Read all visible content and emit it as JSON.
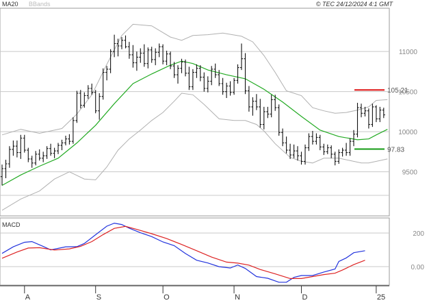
{
  "header": {
    "ma_label": "MA20",
    "bands_label": "BBands",
    "copyright": "© TEC 24/12/2024 4:1 GMT"
  },
  "colors": {
    "ma": "#22aa22",
    "bands": "#b0b0b0",
    "bars": "#111111",
    "resistance": "#dd1111",
    "support": "#119911",
    "macd": "#2233dd",
    "signal": "#dd2222",
    "grid": "#c8c8c8",
    "frame": "#999999"
  },
  "chart_data": [
    {
      "type": "ohlc",
      "y_axis": {
        "min": 89.5,
        "max": 115.4,
        "ticks": [
          95,
          100,
          105,
          110
        ],
        "tick_labels": [
          "9500",
          "10000",
          "10500",
          "11000"
        ]
      },
      "x_axis": {
        "min": 0,
        "max": 103.5,
        "ticks": [
          6,
          25,
          43,
          62,
          80,
          100
        ],
        "tick_labels": [
          "A",
          "S",
          "O",
          "N",
          "D",
          "25"
        ]
      },
      "levels": [
        {
          "name": "resistance",
          "value": 105.21,
          "label": "105.21"
        },
        {
          "name": "support",
          "value": 97.83,
          "label": "97.83"
        }
      ],
      "ohlc": [
        [
          94.4,
          95.9,
          93.3,
          95.4
        ],
        [
          95.4,
          96.5,
          94.2,
          96.0
        ],
        [
          96.0,
          98.2,
          95.5,
          97.8
        ],
        [
          97.8,
          98.9,
          97.0,
          98.2
        ],
        [
          98.2,
          98.9,
          96.8,
          97.4
        ],
        [
          97.4,
          99.6,
          96.6,
          99.2
        ],
        [
          99.2,
          99.6,
          97.4,
          97.7
        ],
        [
          97.7,
          98.0,
          96.2,
          96.6
        ],
        [
          96.6,
          97.0,
          95.5,
          96.1
        ],
        [
          96.1,
          97.6,
          95.8,
          97.2
        ],
        [
          97.2,
          97.8,
          96.4,
          96.7
        ],
        [
          96.7,
          97.5,
          96.2,
          97.0
        ],
        [
          97.0,
          98.2,
          96.6,
          97.9
        ],
        [
          97.9,
          98.5,
          97.0,
          97.3
        ],
        [
          97.3,
          98.0,
          96.7,
          97.6
        ],
        [
          97.6,
          98.6,
          97.2,
          98.3
        ],
        [
          98.3,
          99.0,
          97.7,
          98.6
        ],
        [
          98.6,
          99.5,
          98.3,
          99.1
        ],
        [
          99.1,
          99.7,
          98.4,
          98.8
        ],
        [
          98.8,
          101.8,
          98.5,
          101.4
        ],
        [
          101.4,
          105.1,
          101.1,
          104.8
        ],
        [
          104.8,
          105.2,
          102.9,
          103.3
        ],
        [
          103.3,
          104.9,
          103.0,
          104.5
        ],
        [
          104.5,
          105.8,
          104.1,
          105.4
        ],
        [
          105.4,
          106.0,
          104.6,
          104.9
        ],
        [
          104.9,
          105.2,
          102.3,
          102.6
        ],
        [
          102.6,
          104.8,
          101.5,
          104.4
        ],
        [
          104.4,
          107.9,
          104.0,
          107.4
        ],
        [
          107.4,
          108.2,
          106.4,
          107.8
        ],
        [
          107.8,
          110.3,
          107.3,
          110.0
        ],
        [
          110.0,
          112.1,
          109.3,
          111.0
        ],
        [
          111.0,
          111.6,
          109.4,
          110.7
        ],
        [
          110.7,
          111.8,
          110.3,
          111.4
        ],
        [
          111.4,
          112.0,
          110.4,
          110.6
        ],
        [
          110.6,
          111.2,
          109.1,
          109.6
        ],
        [
          109.6,
          110.8,
          108.0,
          108.6
        ],
        [
          108.6,
          110.0,
          107.6,
          109.3
        ],
        [
          109.3,
          110.4,
          108.6,
          109.8
        ],
        [
          109.8,
          110.9,
          108.1,
          108.5
        ],
        [
          108.5,
          110.5,
          107.9,
          110.2
        ],
        [
          110.2,
          110.6,
          108.6,
          109.0
        ],
        [
          109.0,
          110.4,
          108.3,
          109.9
        ],
        [
          109.9,
          111.0,
          109.3,
          110.6
        ],
        [
          110.6,
          110.9,
          108.4,
          108.8
        ],
        [
          108.8,
          110.1,
          108.3,
          109.7
        ],
        [
          109.7,
          110.0,
          107.8,
          108.2
        ],
        [
          108.2,
          108.7,
          106.7,
          107.1
        ],
        [
          107.1,
          108.3,
          106.0,
          107.9
        ],
        [
          107.9,
          109.1,
          107.3,
          108.7
        ],
        [
          108.7,
          109.0,
          106.9,
          107.3
        ],
        [
          107.3,
          108.1,
          105.2,
          105.6
        ],
        [
          105.6,
          107.8,
          105.2,
          107.4
        ],
        [
          107.4,
          108.4,
          106.7,
          107.9
        ],
        [
          107.9,
          108.3,
          106.3,
          106.8
        ],
        [
          106.8,
          107.4,
          105.0,
          105.4
        ],
        [
          105.4,
          106.9,
          104.9,
          106.3
        ],
        [
          106.3,
          108.2,
          105.8,
          107.8
        ],
        [
          107.8,
          108.5,
          106.7,
          107.1
        ],
        [
          107.1,
          107.7,
          105.7,
          106.0
        ],
        [
          106.0,
          106.7,
          104.6,
          105.0
        ],
        [
          105.0,
          106.1,
          104.2,
          105.7
        ],
        [
          105.7,
          106.3,
          104.5,
          104.9
        ],
        [
          104.9,
          106.7,
          104.6,
          106.4
        ],
        [
          106.4,
          108.4,
          106.0,
          108.0
        ],
        [
          108.0,
          111.0,
          107.7,
          109.1
        ],
        [
          109.1,
          109.8,
          104.7,
          105.1
        ],
        [
          105.1,
          105.7,
          102.5,
          103.1
        ],
        [
          103.1,
          104.3,
          102.0,
          103.8
        ],
        [
          103.8,
          104.7,
          102.7,
          103.1
        ],
        [
          103.1,
          104.1,
          100.5,
          100.9
        ],
        [
          100.9,
          103.1,
          100.3,
          102.5
        ],
        [
          102.5,
          103.1,
          101.7,
          102.2
        ],
        [
          102.2,
          104.6,
          101.8,
          104.0
        ],
        [
          104.0,
          104.6,
          102.6,
          103.0
        ],
        [
          103.0,
          103.4,
          99.5,
          99.9
        ],
        [
          99.9,
          100.4,
          98.2,
          98.6
        ],
        [
          98.6,
          99.4,
          97.3,
          97.7
        ],
        [
          97.7,
          98.5,
          96.6,
          97.1
        ],
        [
          97.1,
          98.4,
          96.7,
          97.6
        ],
        [
          97.6,
          98.2,
          96.4,
          97.0
        ],
        [
          97.0,
          97.5,
          95.9,
          96.3
        ],
        [
          96.3,
          98.4,
          95.9,
          98.0
        ],
        [
          98.0,
          99.8,
          97.6,
          99.4
        ],
        [
          99.4,
          100.1,
          98.4,
          98.8
        ],
        [
          98.8,
          99.8,
          98.4,
          99.3
        ],
        [
          99.3,
          99.6,
          97.7,
          98.1
        ],
        [
          98.1,
          98.5,
          97.1,
          97.5
        ],
        [
          97.5,
          98.4,
          97.2,
          98.0
        ],
        [
          98.0,
          98.3,
          96.7,
          97.2
        ],
        [
          97.2,
          97.5,
          95.8,
          96.3
        ],
        [
          96.3,
          97.8,
          96.0,
          97.4
        ],
        [
          97.4,
          98.0,
          96.9,
          97.7
        ],
        [
          97.7,
          98.6,
          97.0,
          97.4
        ],
        [
          97.4,
          99.2,
          97.0,
          98.8
        ],
        [
          98.8,
          100.2,
          98.2,
          99.7
        ],
        [
          99.7,
          103.6,
          99.3,
          103.0
        ],
        [
          103.0,
          103.5,
          101.8,
          102.3
        ],
        [
          102.3,
          103.1,
          101.9,
          102.6
        ],
        [
          102.6,
          102.9,
          100.4,
          100.9
        ],
        [
          100.9,
          103.5,
          100.6,
          103.1
        ],
        [
          103.1,
          103.3,
          101.2,
          101.6
        ],
        [
          101.6,
          103.1,
          101.2,
          102.7
        ],
        [
          102.7,
          103.0,
          101.7,
          102.1
        ]
      ],
      "ma20": [
        [
          0,
          93.3
        ],
        [
          5,
          94.6
        ],
        [
          10,
          95.7
        ],
        [
          15,
          96.7
        ],
        [
          20,
          98.6
        ],
        [
          25,
          100.8
        ],
        [
          30,
          103.5
        ],
        [
          35,
          106.0
        ],
        [
          40,
          107.2
        ],
        [
          45,
          108.3
        ],
        [
          48,
          108.8
        ],
        [
          51,
          108.5
        ],
        [
          55,
          107.7
        ],
        [
          60,
          107.1
        ],
        [
          65,
          106.6
        ],
        [
          70,
          105.3
        ],
        [
          75,
          103.7
        ],
        [
          80,
          101.9
        ],
        [
          85,
          100.2
        ],
        [
          90,
          99.4
        ],
        [
          95,
          99.0
        ],
        [
          98,
          99.1
        ],
        [
          100,
          99.6
        ],
        [
          103,
          100.3
        ]
      ],
      "bb_upper": [
        [
          0,
          99.6
        ],
        [
          5,
          100.3
        ],
        [
          10,
          99.8
        ],
        [
          16,
          100.4
        ],
        [
          20,
          102.2
        ],
        [
          24,
          104.6
        ],
        [
          28,
          108.4
        ],
        [
          32,
          112.0
        ],
        [
          35,
          113.4
        ],
        [
          40,
          113.2
        ],
        [
          45,
          111.8
        ],
        [
          48,
          111.4
        ],
        [
          51,
          112.0
        ],
        [
          55,
          112.1
        ],
        [
          59,
          112.3
        ],
        [
          64,
          111.9
        ],
        [
          67,
          111.2
        ],
        [
          70,
          109.5
        ],
        [
          73,
          107.4
        ],
        [
          76,
          105.1
        ],
        [
          80,
          104.5
        ],
        [
          83,
          103.0
        ],
        [
          86,
          102.6
        ],
        [
          89,
          102.3
        ],
        [
          92,
          102.4
        ],
        [
          95,
          102.7
        ],
        [
          98,
          103.1
        ],
        [
          100,
          103.9
        ],
        [
          103,
          104.0
        ]
      ],
      "bb_lower": [
        [
          0,
          90.2
        ],
        [
          5,
          91.6
        ],
        [
          10,
          92.6
        ],
        [
          14,
          94.1
        ],
        [
          18,
          95.0
        ],
        [
          22,
          94.1
        ],
        [
          25,
          94.0
        ],
        [
          28,
          95.6
        ],
        [
          31,
          97.7
        ],
        [
          34,
          99.1
        ],
        [
          37,
          100.2
        ],
        [
          40,
          101.4
        ],
        [
          43,
          102.4
        ],
        [
          46,
          103.8
        ],
        [
          48,
          104.8
        ],
        [
          51,
          104.6
        ],
        [
          54,
          103.4
        ],
        [
          58,
          101.6
        ],
        [
          62,
          101.4
        ],
        [
          65,
          101.4
        ],
        [
          68,
          100.9
        ],
        [
          70,
          100.1
        ],
        [
          73,
          98.5
        ],
        [
          77,
          96.8
        ],
        [
          80,
          96.3
        ],
        [
          83,
          96.1
        ],
        [
          86,
          96.7
        ],
        [
          90,
          96.7
        ],
        [
          93,
          96.4
        ],
        [
          96,
          96.1
        ],
        [
          98,
          96.1
        ],
        [
          101,
          96.4
        ],
        [
          103,
          96.6
        ]
      ]
    },
    {
      "type": "line",
      "y_axis": {
        "min": -110,
        "max": 290,
        "ticks": [
          0,
          200
        ],
        "tick_labels": [
          "0.00",
          "200"
        ]
      },
      "series": [
        {
          "name": "MACD",
          "points": [
            [
              0,
              79
            ],
            [
              3,
              118
            ],
            [
              6,
              145
            ],
            [
              8,
              149
            ],
            [
              11,
              120
            ],
            [
              13,
              100
            ],
            [
              17,
              118
            ],
            [
              20,
              119
            ],
            [
              22,
              138
            ],
            [
              25,
              190
            ],
            [
              28,
              241
            ],
            [
              30,
              259
            ],
            [
              32,
              251
            ],
            [
              34,
              229
            ],
            [
              37,
              202
            ],
            [
              40,
              179
            ],
            [
              43,
              147
            ],
            [
              46,
              125
            ],
            [
              49,
              78
            ],
            [
              52,
              38
            ],
            [
              55,
              22
            ],
            [
              58,
              0
            ],
            [
              61,
              -8
            ],
            [
              63,
              10
            ],
            [
              65,
              -11
            ],
            [
              68,
              -59
            ],
            [
              71,
              -69
            ],
            [
              74,
              -93
            ],
            [
              76,
              -93
            ],
            [
              78,
              -64
            ],
            [
              80,
              -53
            ],
            [
              83,
              -53
            ],
            [
              86,
              -32
            ],
            [
              89,
              -14
            ],
            [
              90,
              31
            ],
            [
              92,
              52
            ],
            [
              94,
              83
            ],
            [
              97,
              95
            ]
          ]
        },
        {
          "name": "Signal",
          "points": [
            [
              0,
              50
            ],
            [
              4,
              87
            ],
            [
              7,
              111
            ],
            [
              10,
              113
            ],
            [
              14,
              99
            ],
            [
              18,
              106
            ],
            [
              21,
              121
            ],
            [
              24,
              149
            ],
            [
              27,
              191
            ],
            [
              30,
              228
            ],
            [
              33,
              240
            ],
            [
              36,
              222
            ],
            [
              40,
              196
            ],
            [
              44,
              167
            ],
            [
              48,
              132
            ],
            [
              52,
              95
            ],
            [
              56,
              57
            ],
            [
              60,
              27
            ],
            [
              63,
              21
            ],
            [
              66,
              9
            ],
            [
              69,
              -17
            ],
            [
              73,
              -43
            ],
            [
              77,
              -71
            ],
            [
              80,
              -71
            ],
            [
              83,
              -59
            ],
            [
              86,
              -47
            ],
            [
              89,
              -39
            ],
            [
              91,
              -20
            ],
            [
              94,
              12
            ],
            [
              97,
              38
            ]
          ]
        }
      ]
    }
  ]
}
